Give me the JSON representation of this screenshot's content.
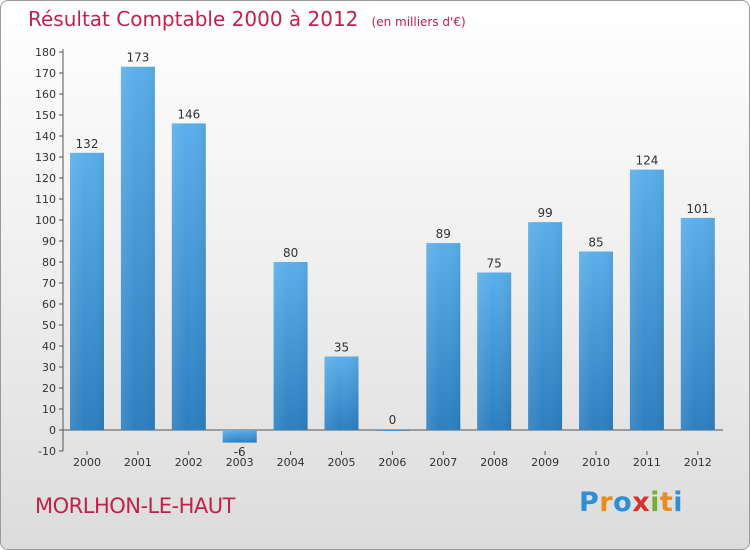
{
  "header": {
    "title": "Résultat Comptable 2000 à 2012",
    "subtitle": "(en milliers d'€)"
  },
  "footer": {
    "town": "MORLHON-LE-HAUT",
    "logo_text": "Proxiti",
    "logo_letters": [
      {
        "ch": "P",
        "color": "#2e8fd2"
      },
      {
        "ch": "r",
        "color": "#e98b1e"
      },
      {
        "ch": "o",
        "color": "#2e8fd2"
      },
      {
        "ch": "x",
        "color": "#d6302f"
      },
      {
        "ch": "i",
        "color": "#6fb22d"
      },
      {
        "ch": "t",
        "color": "#e98b1e"
      },
      {
        "ch": "i",
        "color": "#2e8fd2"
      }
    ]
  },
  "colors": {
    "accent": "#c0224e",
    "bar_top": "#5aaeea",
    "bar_bottom": "#2d7fc0"
  },
  "chart_data": {
    "type": "bar",
    "title": "Résultat Comptable 2000 à 2012",
    "subtitle": "(en milliers d'€)",
    "categories": [
      "2000",
      "2001",
      "2002",
      "2003",
      "2004",
      "2005",
      "2006",
      "2007",
      "2008",
      "2009",
      "2010",
      "2011",
      "2012"
    ],
    "values": [
      132,
      173,
      146,
      -6,
      80,
      35,
      0,
      89,
      75,
      99,
      85,
      124,
      101
    ],
    "value_labels": [
      "132",
      "173",
      "146",
      "-6",
      "80",
      "35",
      "0",
      "89",
      "75",
      "99",
      "85",
      "124",
      "101"
    ],
    "ylim": [
      -10,
      180
    ],
    "yticks": [
      -10,
      0,
      10,
      20,
      30,
      40,
      50,
      60,
      70,
      80,
      90,
      100,
      110,
      120,
      130,
      140,
      150,
      160,
      170,
      180
    ],
    "xlabel": "",
    "ylabel": "",
    "grid": false
  }
}
